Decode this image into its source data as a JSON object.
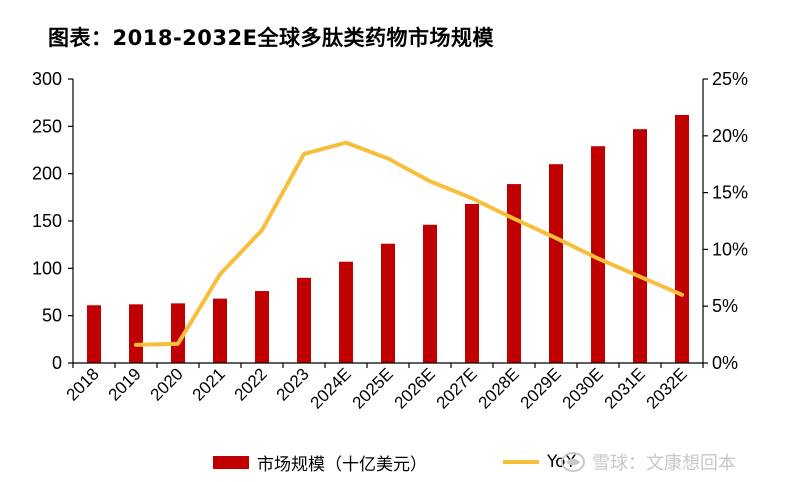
{
  "title": "图表：2018-2032E全球多肽类药物市场规模",
  "watermark": "雪球：文康想回本",
  "legend": {
    "bar_label": "市场规模（十亿美元）",
    "line_label": "YoY"
  },
  "colors": {
    "bar": "#C00000",
    "line": "#F8BE3A",
    "axis": "#000000"
  },
  "chart_data": {
    "type": "bar+line",
    "categories": [
      "2018",
      "2019",
      "2020",
      "2021",
      "2022",
      "2023",
      "2024E",
      "2025E",
      "2026E",
      "2027E",
      "2028E",
      "2029E",
      "2030E",
      "2031E",
      "2032E"
    ],
    "series": [
      {
        "name": "市场规模（十亿美元）",
        "type": "bar",
        "axis": "left",
        "values": [
          61,
          62,
          63,
          68,
          76,
          90,
          107,
          126,
          146,
          168,
          189,
          210,
          229,
          247,
          262
        ]
      },
      {
        "name": "YoY",
        "type": "line",
        "axis": "right",
        "values": [
          null,
          1.6,
          1.7,
          7.8,
          11.7,
          18.4,
          19.4,
          18.0,
          16.0,
          14.5,
          12.7,
          11.0,
          9.2,
          7.6,
          6.0
        ]
      }
    ],
    "ylim_left": [
      0,
      300
    ],
    "yticks_left": [
      "0",
      "50",
      "100",
      "150",
      "200",
      "250",
      "300"
    ],
    "ylim_right": [
      0,
      25
    ],
    "yticks_right": [
      "0%",
      "5%",
      "10%",
      "15%",
      "20%",
      "25%"
    ],
    "legend_position": "bottom",
    "grid": false
  }
}
